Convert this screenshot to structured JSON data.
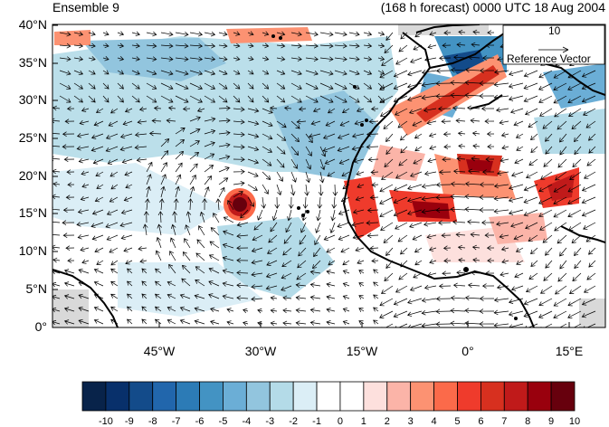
{
  "header": {
    "left_title": "Ensemble 9",
    "right_title": "(168 h forecast) 0000 UTC 18 Aug 2004"
  },
  "map": {
    "lat_labels": [
      "40°N",
      "35°N",
      "30°N",
      "25°N",
      "20°N",
      "15°N",
      "10°N",
      "5°N",
      "0°"
    ],
    "lon_labels": [
      "45°W",
      "30°W",
      "15°W",
      "0°",
      "15°E"
    ]
  },
  "reference_vector": {
    "value": "10",
    "label": "Reference Vector"
  },
  "colorbar": {
    "labels": [
      "-10",
      "-9",
      "-8",
      "-7",
      "-6",
      "-5",
      "-4",
      "-3",
      "-2",
      "-1",
      "0",
      "1",
      "2",
      "3",
      "4",
      "5",
      "6",
      "7",
      "8",
      "9",
      "10"
    ],
    "colors": [
      "#08234a",
      "#08306b",
      "#134b8a",
      "#2166ac",
      "#2c7bb6",
      "#4393c3",
      "#6baed6",
      "#92c5de",
      "#b4dbe8",
      "#dbeef6",
      "#ffffff",
      "#ffffff",
      "#fde0dd",
      "#fbb4a8",
      "#fc9272",
      "#fb6a4a",
      "#ef3b2c",
      "#d7301f",
      "#c01a1a",
      "#99000d",
      "#67000d"
    ]
  }
}
